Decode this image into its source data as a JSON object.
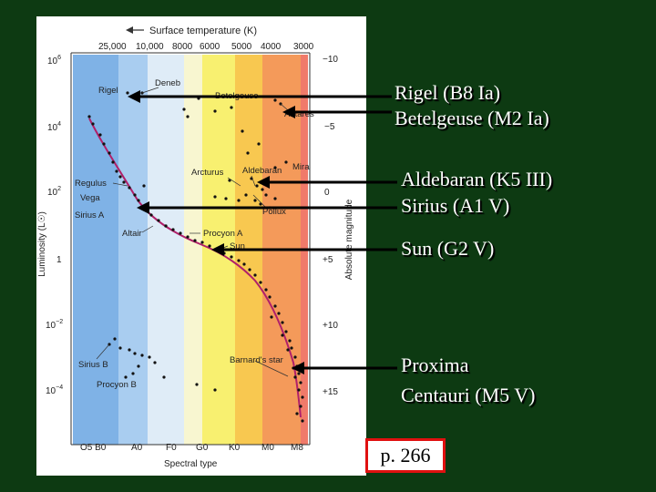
{
  "diagram": {
    "top_axis_title": "Surface temperature (K)",
    "top_ticks": [
      "25,000",
      "10,000",
      "8000",
      "6000",
      "5000",
      "4000",
      "3000"
    ],
    "left_axis_title": "Luminosity (L☉)",
    "left_ticks": [
      {
        "base": "10",
        "exp": "6"
      },
      {
        "base": "10",
        "exp": "4"
      },
      {
        "base": "10",
        "exp": "2"
      },
      {
        "base": "1",
        "exp": ""
      },
      {
        "base": "10",
        "exp": "−2"
      },
      {
        "base": "10",
        "exp": "−4"
      }
    ],
    "right_axis_title": "Absolute magnitude",
    "right_ticks": [
      "−10",
      "−5",
      "0",
      "+5",
      "+10",
      "+15"
    ],
    "bottom_axis_title": "Spectral type",
    "bottom_ticks": [
      "O5 B0",
      "A0",
      "F0",
      "G0",
      "K0",
      "M0",
      "M8"
    ],
    "star_labels": {
      "rigel": "Rigel",
      "deneb": "Deneb",
      "betelgeuse": "Betelgeuse",
      "antares": "Antares",
      "mira": "Mira",
      "arcturus": "Arcturus",
      "aldebaran": "Aldebaran",
      "regulus": "Regulus",
      "vega": "Vega",
      "sirius_a": "Sirius A",
      "altair": "Altair",
      "procyon_a": "Procyon A",
      "sun": "Sun",
      "pollux": "Pollux",
      "sirius_b": "Sirius B",
      "procyon_b": "Procyon B",
      "barnards_star": "Barnard's star"
    },
    "band_colors": [
      "#7fb2e6",
      "#a9cdf0",
      "#dfecf7",
      "#f8f6d0",
      "#f8f070",
      "#f8c850",
      "#f49a5a",
      "#f07a6a"
    ],
    "sequence_color": "#b0206a"
  },
  "callouts": {
    "rigel": "Rigel  (B8 Ia)",
    "betelgeuse": "Betelgeuse  (M2 Ia)",
    "aldebaran": "Aldebaran  (K5 III)",
    "sirius": "Sirius  (A1 V)",
    "sun": "Sun  (G2 V)",
    "proxima_line1": "Proxima",
    "proxima_line2": "Centauri  (M5 V)"
  },
  "page_ref": "p. 266"
}
